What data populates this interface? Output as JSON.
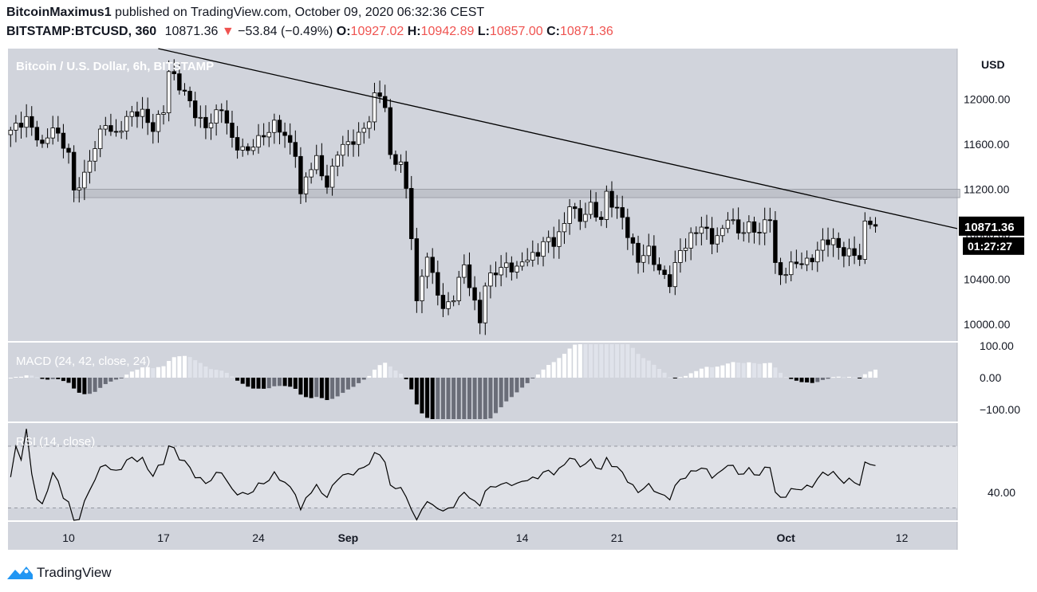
{
  "header": {
    "author": "BitcoinMaximus1",
    "published_text": "published on TradingView.com, October 09, 2020 06:32:36 CEST",
    "symbol": "BITSTAMP:BTCUSD, 360",
    "last_price": "10871.36",
    "change_arrow": "▼",
    "change": "−53.84 (−0.49%)",
    "o_label": "O:",
    "o_value": "10927.02",
    "h_label": "H:",
    "h_value": "10942.89",
    "l_label": "L:",
    "l_value": "10857.00",
    "c_label": "C:",
    "c_value": "10871.36"
  },
  "footer": {
    "brand": "TradingView",
    "logo_icon": "tradingview-logo-icon"
  },
  "colors": {
    "chart_bg": "#d1d4dc",
    "candle": "#000000",
    "panel_sep": "#ffffff",
    "axis_text": "#131722",
    "price_tag_bg": "#000000",
    "price_tag_text": "#ffffff"
  },
  "chart_data": {
    "type": "candlestick",
    "title": "Bitcoin / U.S. Dollar, 6h, BITSTAMP",
    "price_unit": "USD",
    "timeframe": "6h",
    "price_axis": {
      "ticks": [
        "12000.00",
        "11600.00",
        "11200.00",
        "10800.00",
        "10400.00",
        "10000.00"
      ],
      "range": [
        9850,
        12450
      ]
    },
    "time_axis": {
      "labels": [
        "10",
        "17",
        "24",
        "Sep",
        "14",
        "21",
        "Oct",
        "12"
      ]
    },
    "last_price_tag": "10871.36",
    "countdown_tag": "01:27:27",
    "price_path": [
      [
        0,
        11700
      ],
      [
        3,
        11850
      ],
      [
        6,
        11550
      ],
      [
        8,
        11780
      ],
      [
        11,
        11500
      ],
      [
        12,
        11150
      ],
      [
        14,
        11350
      ],
      [
        16,
        11580
      ],
      [
        18,
        11770
      ],
      [
        20,
        11700
      ],
      [
        22,
        11820
      ],
      [
        25,
        11900
      ],
      [
        27,
        11740
      ],
      [
        29,
        11880
      ],
      [
        30,
        12250
      ],
      [
        31,
        12220
      ],
      [
        33,
        12050
      ],
      [
        35,
        11850
      ],
      [
        37,
        11780
      ],
      [
        40,
        11900
      ],
      [
        42,
        11650
      ],
      [
        45,
        11520
      ],
      [
        48,
        11700
      ],
      [
        50,
        11780
      ],
      [
        52,
        11650
      ],
      [
        54,
        11550
      ],
      [
        55,
        11150
      ],
      [
        56,
        11300
      ],
      [
        58,
        11450
      ],
      [
        60,
        11250
      ],
      [
        62,
        11520
      ],
      [
        64,
        11600
      ],
      [
        66,
        11700
      ],
      [
        68,
        11800
      ],
      [
        69,
        12000
      ],
      [
        70,
        12050
      ],
      [
        71,
        11950
      ],
      [
        72,
        11500
      ],
      [
        74,
        11400
      ],
      [
        75,
        11180
      ],
      [
        76,
        10800
      ],
      [
        77,
        10200
      ],
      [
        78,
        10450
      ],
      [
        79,
        10600
      ],
      [
        80,
        10400
      ],
      [
        82,
        10150
      ],
      [
        84,
        10250
      ],
      [
        86,
        10500
      ],
      [
        88,
        10200
      ],
      [
        89,
        10050
      ],
      [
        90,
        10350
      ],
      [
        92,
        10450
      ],
      [
        94,
        10550
      ],
      [
        96,
        10480
      ],
      [
        98,
        10580
      ],
      [
        100,
        10650
      ],
      [
        101,
        10750
      ],
      [
        103,
        10700
      ],
      [
        105,
        10900
      ],
      [
        106,
        11100
      ],
      [
        108,
        10900
      ],
      [
        110,
        11050
      ],
      [
        112,
        10950
      ],
      [
        113,
        11150
      ],
      [
        114,
        11050
      ],
      [
        116,
        10950
      ],
      [
        118,
        10700
      ],
      [
        119,
        10550
      ],
      [
        121,
        10650
      ],
      [
        123,
        10500
      ],
      [
        125,
        10350
      ],
      [
        127,
        10650
      ],
      [
        129,
        10800
      ],
      [
        131,
        10850
      ],
      [
        133,
        10750
      ],
      [
        135,
        10850
      ],
      [
        136,
        10950
      ],
      [
        138,
        10800
      ],
      [
        140,
        10900
      ],
      [
        142,
        10800
      ],
      [
        144,
        10950
      ],
      [
        145,
        10550
      ],
      [
        146,
        10450
      ],
      [
        148,
        10500
      ],
      [
        150,
        10550
      ],
      [
        152,
        10600
      ],
      [
        154,
        10700
      ],
      [
        156,
        10750
      ],
      [
        158,
        10650
      ],
      [
        160,
        10600
      ],
      [
        161,
        10580
      ],
      [
        162,
        10900
      ],
      [
        163,
        10940
      ],
      [
        164,
        10871
      ]
    ],
    "resistance_zone": {
      "low": 11125,
      "high": 11200,
      "from_bar": 12,
      "to_bar": 180
    },
    "descending_trendline": {
      "from": [
        28,
        12450
      ],
      "to": [
        180,
        10850
      ]
    },
    "macd": {
      "label": "MACD (24, 42, close, 24)",
      "ticks": [
        "100.00",
        "0.00",
        "−100.00"
      ],
      "range": [
        -135,
        110
      ]
    },
    "rsi": {
      "label": "RSI (14, close)",
      "ticks": [
        "40.00"
      ],
      "range": [
        22,
        85
      ],
      "bands": [
        30,
        70
      ]
    }
  }
}
